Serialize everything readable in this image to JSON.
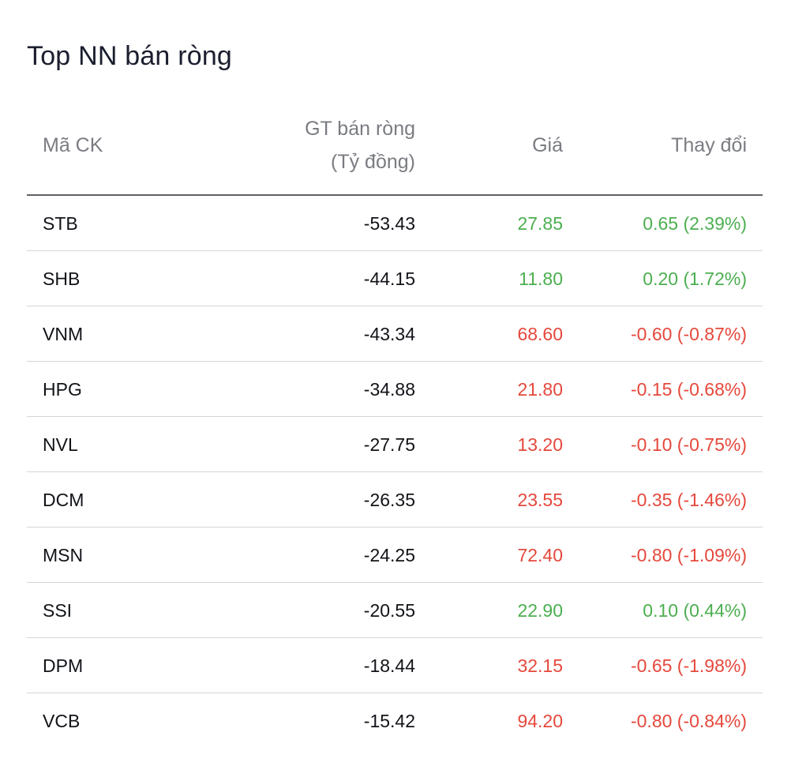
{
  "title": "Top NN bán ròng",
  "columns": {
    "code": "Mã CK",
    "value_line1": "GT bán ròng",
    "value_line2": "(Tỷ đồng)",
    "price": "Giá",
    "change": "Thay đổi"
  },
  "colors": {
    "up": "#4caf50",
    "down": "#e5483c"
  },
  "rows": [
    {
      "code": "STB",
      "value": "-53.43",
      "price": "27.85",
      "change": "0.65 (2.39%)",
      "direction": "up"
    },
    {
      "code": "SHB",
      "value": "-44.15",
      "price": "11.80",
      "change": "0.20 (1.72%)",
      "direction": "up"
    },
    {
      "code": "VNM",
      "value": "-43.34",
      "price": "68.60",
      "change": "-0.60 (-0.87%)",
      "direction": "down"
    },
    {
      "code": "HPG",
      "value": "-34.88",
      "price": "21.80",
      "change": "-0.15 (-0.68%)",
      "direction": "down"
    },
    {
      "code": "NVL",
      "value": "-27.75",
      "price": "13.20",
      "change": "-0.10 (-0.75%)",
      "direction": "down"
    },
    {
      "code": "DCM",
      "value": "-26.35",
      "price": "23.55",
      "change": "-0.35 (-1.46%)",
      "direction": "down"
    },
    {
      "code": "MSN",
      "value": "-24.25",
      "price": "72.40",
      "change": "-0.80 (-1.09%)",
      "direction": "down"
    },
    {
      "code": "SSI",
      "value": "-20.55",
      "price": "22.90",
      "change": "0.10 (0.44%)",
      "direction": "up"
    },
    {
      "code": "DPM",
      "value": "-18.44",
      "price": "32.15",
      "change": "-0.65 (-1.98%)",
      "direction": "down"
    },
    {
      "code": "VCB",
      "value": "-15.42",
      "price": "94.20",
      "change": "-0.80 (-0.84%)",
      "direction": "down"
    }
  ]
}
